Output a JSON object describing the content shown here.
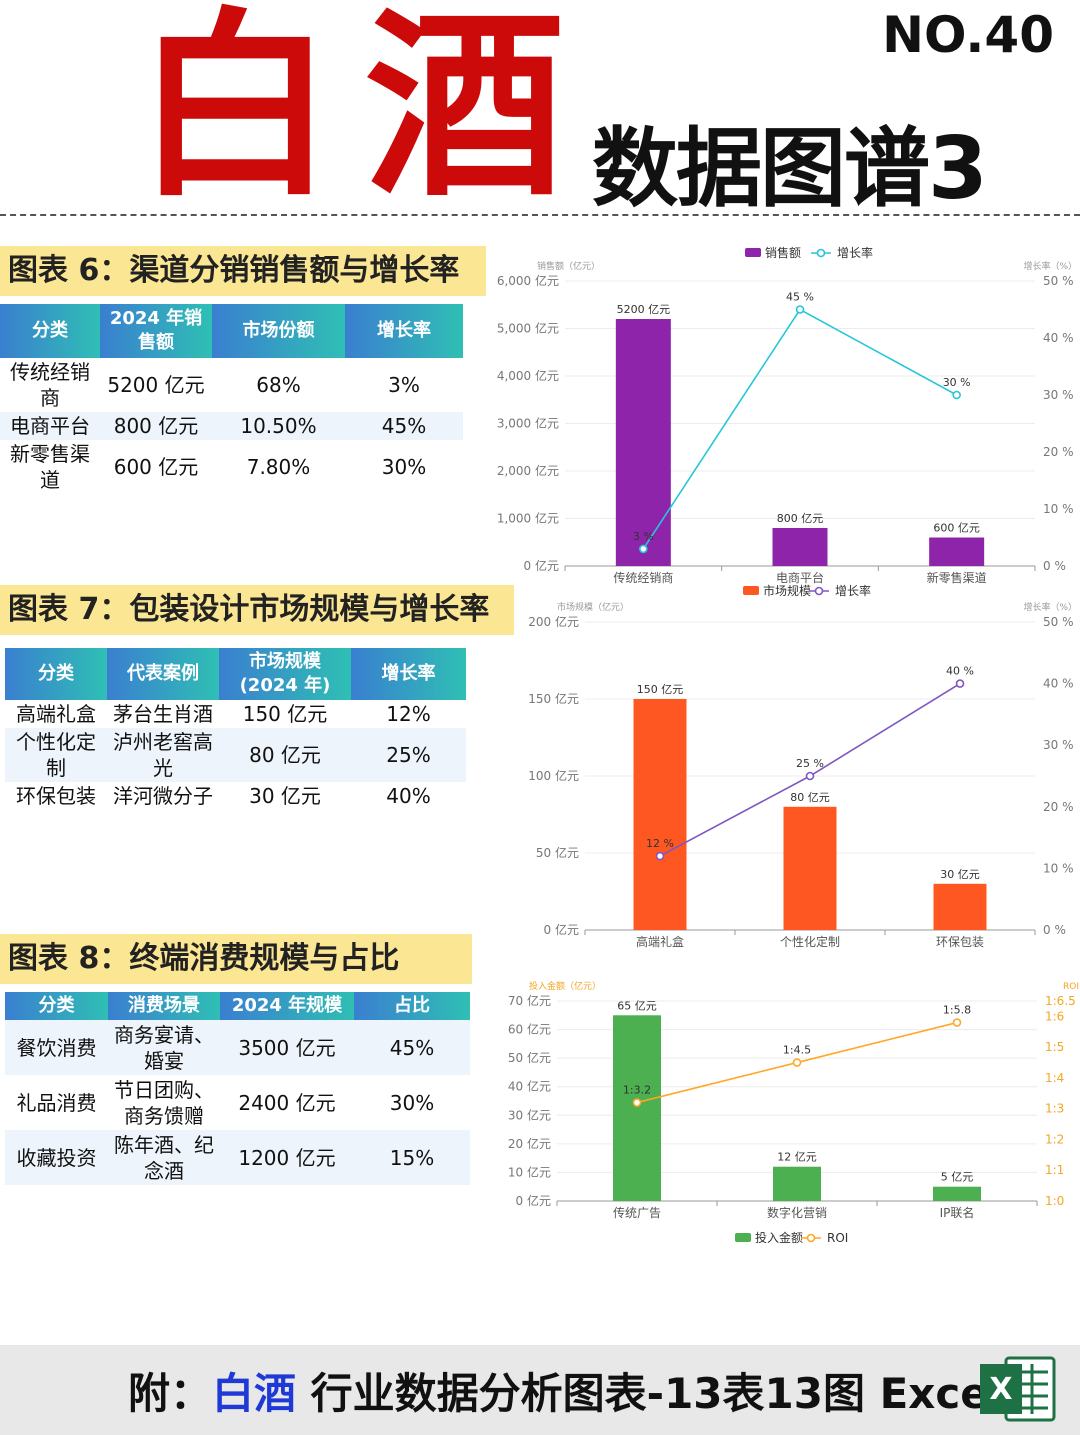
{
  "header": {
    "main_title": "白酒",
    "number": "NO.40",
    "subtitle": "数据图谱3"
  },
  "section6": {
    "title": "图表 6：渠道分销销售额与增长率",
    "table": {
      "headers": [
        "分类",
        "2024 年销售额",
        "市场份额",
        "增长率"
      ],
      "rows": [
        [
          "传统经销商",
          "5200 亿元",
          "68%",
          "3%"
        ],
        [
          "电商平台",
          "800 亿元",
          "10.50%",
          "45%"
        ],
        [
          "新零售渠道",
          "600 亿元",
          "7.80%",
          "30%"
        ]
      ]
    }
  },
  "section7": {
    "title": "图表 7：包装设计市场规模与增长率",
    "table": {
      "headers": [
        "分类",
        "代表案例",
        "市场规模 (2024 年)",
        "增长率"
      ],
      "rows": [
        [
          "高端礼盒",
          "茅台生肖酒",
          "150 亿元",
          "12%"
        ],
        [
          "个性化定制",
          "泸州老窖高光",
          "80 亿元",
          "25%"
        ],
        [
          "环保包装",
          "洋河微分子",
          "30 亿元",
          "40%"
        ]
      ]
    }
  },
  "section8": {
    "title": "图表 8：终端消费规模与占比",
    "table": {
      "headers": [
        "分类",
        "消费场景",
        "2024 年规模",
        "占比"
      ],
      "rows": [
        [
          "餐饮消费",
          "商务宴请、婚宴",
          "3500 亿元",
          "45%"
        ],
        [
          "礼品消费",
          "节日团购、商务馈赠",
          "2400 亿元",
          "30%"
        ],
        [
          "收藏投资",
          "陈年酒、纪念酒",
          "1200 亿元",
          "15%"
        ]
      ]
    }
  },
  "footer": {
    "prefix": "附：",
    "accent": "白酒",
    "text": " 行业数据分析图表-13表13图 Excel",
    "icon": "excel-icon"
  },
  "colors": {
    "title_red": "#cc0a0a",
    "section_bg": "#fbe694",
    "bar_purple": "#8e24aa",
    "line_teal": "#26c6da",
    "bar_orange": "#ff5722",
    "line_purple": "#7e57c2",
    "bar_green": "#4caf50",
    "line_amber": "#ffa726",
    "accent_blue": "#1f39d6"
  },
  "chart_data": [
    {
      "type": "bar",
      "categories": [
        "传统经销商",
        "电商平台",
        "新零售渠道"
      ],
      "series": [
        {
          "name": "销售额",
          "values": [
            5200,
            800,
            600
          ],
          "labels": [
            "5200 亿元",
            "800 亿元",
            "600 亿元"
          ],
          "axis": "left"
        },
        {
          "name": "增长率",
          "values": [
            3,
            45,
            30
          ],
          "labels": [
            "3 %",
            "45 %",
            "30 %"
          ],
          "axis": "right",
          "kind": "line"
        }
      ],
      "yleft_label": "销售额（亿元）",
      "yright_label": "增长率（%）",
      "yleft_ticks": [
        "0 亿元",
        "1,000 亿元",
        "2,000 亿元",
        "3,000 亿元",
        "4,000 亿元",
        "5,000 亿元",
        "6,000 亿元"
      ],
      "yright_ticks": [
        "0 %",
        "10 %",
        "20 %",
        "30 %",
        "40 %",
        "50 %"
      ],
      "ylim_left": [
        0,
        6000
      ],
      "ylim_right": [
        0,
        50
      ],
      "legend": "top"
    },
    {
      "type": "bar",
      "categories": [
        "高端礼盒",
        "个性化定制",
        "环保包装"
      ],
      "series": [
        {
          "name": "市场规模",
          "values": [
            150,
            80,
            30
          ],
          "labels": [
            "150 亿元",
            "80 亿元",
            "30 亿元"
          ],
          "axis": "left"
        },
        {
          "name": "增长率",
          "values": [
            12,
            25,
            40
          ],
          "labels": [
            "12 %",
            "25 %",
            "40 %"
          ],
          "axis": "right",
          "kind": "line"
        }
      ],
      "yleft_label": "市场规模（亿元）",
      "yright_label": "增长率（%）",
      "yleft_ticks": [
        "0 亿元",
        "50 亿元",
        "100 亿元",
        "150 亿元",
        "200 亿元"
      ],
      "yright_ticks": [
        "0 %",
        "10 %",
        "20 %",
        "30 %",
        "40 %",
        "50 %"
      ],
      "ylim_left": [
        0,
        200
      ],
      "ylim_right": [
        0,
        50
      ],
      "legend": "top"
    },
    {
      "type": "bar",
      "categories": [
        "传统广告",
        "数字化营销",
        "IP联名"
      ],
      "series": [
        {
          "name": "投入金额",
          "values": [
            65,
            12,
            5
          ],
          "labels": [
            "65 亿元",
            "12 亿元",
            "5 亿元"
          ],
          "axis": "left"
        },
        {
          "name": "ROI",
          "values": [
            3.2,
            4.5,
            5.8
          ],
          "labels": [
            "1:3.2",
            "1:4.5",
            "1:5.8"
          ],
          "axis": "right",
          "kind": "line"
        }
      ],
      "yleft_label": "投入金额（亿元）",
      "yright_label": "ROI",
      "yleft_ticks": [
        "0 亿元",
        "10 亿元",
        "20 亿元",
        "30 亿元",
        "40 亿元",
        "50 亿元",
        "60 亿元",
        "70 亿元"
      ],
      "yright_ticks": [
        "1:0",
        "1:1",
        "1:2",
        "1:3",
        "1:4",
        "1:5",
        "1:6",
        "1:6.5"
      ],
      "ylim_left": [
        0,
        70
      ],
      "ylim_right": [
        0,
        6.5
      ],
      "legend": "bottom"
    }
  ]
}
